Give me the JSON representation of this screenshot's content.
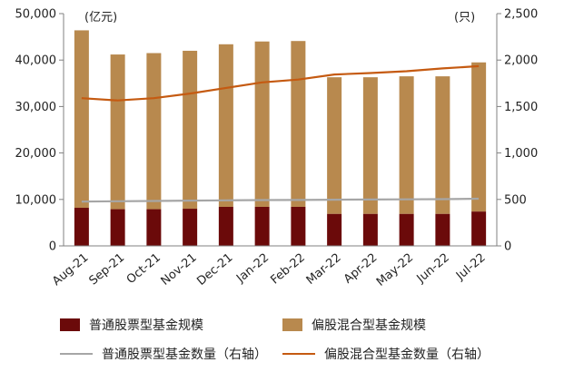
{
  "chart_data": {
    "type": "bar",
    "left_unit": "(亿元)",
    "right_unit": "(只)",
    "categories": [
      "Aug-21",
      "Sep-21",
      "Oct-21",
      "Nov-21",
      "Dec-21",
      "Jan-22",
      "Feb-22",
      "Mar-22",
      "Apr-22",
      "May-22",
      "Jun-22",
      "Jul-22"
    ],
    "left_axis": {
      "ylim": [
        0,
        50000
      ],
      "ticks": [
        "0",
        "10,000",
        "20,000",
        "30,000",
        "40,000",
        "50,000"
      ],
      "tick_values": [
        0,
        10000,
        20000,
        30000,
        40000,
        50000
      ]
    },
    "right_axis": {
      "ylim": [
        0,
        2500
      ],
      "ticks": [
        "0",
        "500",
        "1,000",
        "1,500",
        "2,000",
        "2,500"
      ],
      "tick_values": [
        0,
        500,
        1000,
        1500,
        2000,
        2500
      ]
    },
    "series": [
      {
        "name": "普通股票型基金规模",
        "kind": "bar",
        "stacked": true,
        "axis": "left",
        "color": "#6b0a0a",
        "values": [
          8200,
          7900,
          7900,
          8000,
          8400,
          8400,
          8400,
          6900,
          6900,
          6900,
          6900,
          7400
        ]
      },
      {
        "name": "偏股混合型基金规模",
        "kind": "bar",
        "stacked": true,
        "axis": "left",
        "color": "#b8894e",
        "values": [
          38200,
          33300,
          33600,
          34000,
          35000,
          35600,
          35700,
          29400,
          29400,
          29600,
          29600,
          32100
        ]
      },
      {
        "name": "普通股票型基金数量（右轴）",
        "kind": "line",
        "axis": "right",
        "color": "#a6a6a6",
        "values": [
          477,
          480,
          483,
          487,
          490,
          493,
          494,
          497,
          499,
          501,
          503,
          508
        ]
      },
      {
        "name": "偏股混合型基金数量（右轴）",
        "kind": "line",
        "axis": "right",
        "color": "#c55a11",
        "values": [
          1590,
          1565,
          1590,
          1640,
          1700,
          1760,
          1790,
          1845,
          1860,
          1880,
          1910,
          1935
        ]
      }
    ]
  }
}
